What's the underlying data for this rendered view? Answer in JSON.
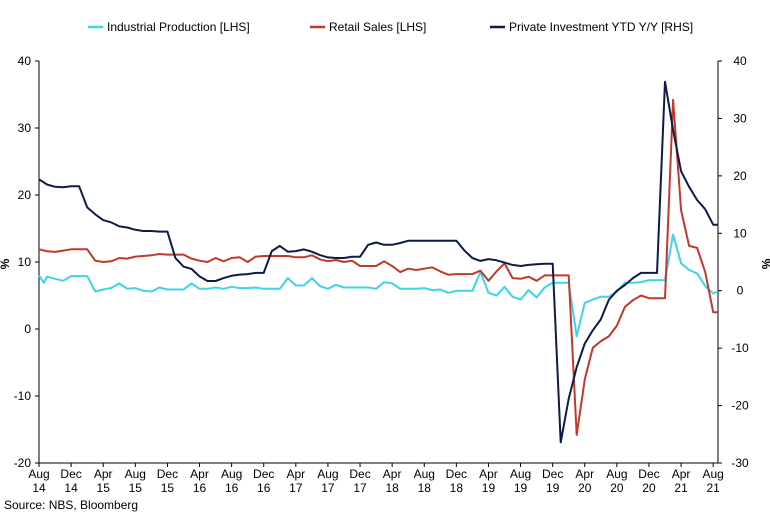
{
  "chart_data": {
    "type": "line",
    "legend_position": "top",
    "source": "Source: NBS, Bloomberg",
    "ylabel_left": "%",
    "ylabel_right": "%",
    "ylim_left": [
      -20,
      40
    ],
    "ylim_right": [
      -30,
      40
    ],
    "yticks_left": [
      40,
      30,
      20,
      10,
      0,
      -10,
      -20
    ],
    "yticks_right": [
      40,
      30,
      20,
      10,
      0,
      -10,
      -20,
      -30
    ],
    "x_start": "2014-08",
    "x_end": "2021-08",
    "xticks": [
      {
        "m": 0,
        "month": "Aug",
        "year": "14"
      },
      {
        "m": 4,
        "month": "Dec",
        "year": "14"
      },
      {
        "m": 8,
        "month": "Apr",
        "year": "15"
      },
      {
        "m": 12,
        "month": "Aug",
        "year": "15"
      },
      {
        "m": 16,
        "month": "Dec",
        "year": "15"
      },
      {
        "m": 20,
        "month": "Apr",
        "year": "16"
      },
      {
        "m": 24,
        "month": "Aug",
        "year": "16"
      },
      {
        "m": 28,
        "month": "Dec",
        "year": "16"
      },
      {
        "m": 32,
        "month": "Apr",
        "year": "17"
      },
      {
        "m": 36,
        "month": "Aug",
        "year": "17"
      },
      {
        "m": 40,
        "month": "Dec",
        "year": "17"
      },
      {
        "m": 44,
        "month": "Apr",
        "year": "18"
      },
      {
        "m": 48,
        "month": "Aug",
        "year": "18"
      },
      {
        "m": 52,
        "month": "Dec",
        "year": "18"
      },
      {
        "m": 56,
        "month": "Apr",
        "year": "19"
      },
      {
        "m": 60,
        "month": "Aug",
        "year": "19"
      },
      {
        "m": 64,
        "month": "Dec",
        "year": "19"
      },
      {
        "m": 68,
        "month": "Apr",
        "year": "20"
      },
      {
        "m": 72,
        "month": "Aug",
        "year": "20"
      },
      {
        "m": 76,
        "month": "Dec",
        "year": "20"
      },
      {
        "m": 80,
        "month": "Apr",
        "year": "21"
      },
      {
        "m": 84,
        "month": "Aug",
        "year": "21"
      }
    ],
    "series": [
      {
        "name": "Industrial Production [LHS]",
        "axis": "left",
        "color": "#3fd3e8",
        "points": [
          [
            0,
            8.0
          ],
          [
            0.6,
            6.9
          ],
          [
            1,
            7.8
          ],
          [
            2,
            7.5
          ],
          [
            3,
            7.2
          ],
          [
            4,
            7.9
          ],
          [
            5,
            7.9
          ],
          [
            6,
            7.9
          ],
          [
            7,
            5.6
          ],
          [
            8,
            5.9
          ],
          [
            9,
            6.1
          ],
          [
            10,
            6.8
          ],
          [
            11,
            6.0
          ],
          [
            12,
            6.1
          ],
          [
            13,
            5.7
          ],
          [
            14,
            5.6
          ],
          [
            15,
            6.2
          ],
          [
            16,
            5.9
          ],
          [
            17,
            5.9
          ],
          [
            18,
            5.9
          ],
          [
            19,
            6.8
          ],
          [
            20,
            6.0
          ],
          [
            21,
            6.0
          ],
          [
            22,
            6.2
          ],
          [
            23,
            6.0
          ],
          [
            24,
            6.3
          ],
          [
            25,
            6.1
          ],
          [
            26,
            6.1
          ],
          [
            27,
            6.2
          ],
          [
            28,
            6.0
          ],
          [
            29,
            6.0
          ],
          [
            30,
            6.0
          ],
          [
            31,
            7.6
          ],
          [
            32,
            6.5
          ],
          [
            33,
            6.5
          ],
          [
            34,
            7.6
          ],
          [
            35,
            6.4
          ],
          [
            36,
            6.0
          ],
          [
            37,
            6.6
          ],
          [
            38,
            6.2
          ],
          [
            39,
            6.2
          ],
          [
            40,
            6.2
          ],
          [
            41,
            6.2
          ],
          [
            42,
            6.0
          ],
          [
            43,
            7.0
          ],
          [
            44,
            6.8
          ],
          [
            45,
            6.0
          ],
          [
            46,
            6.0
          ],
          [
            47,
            6.0
          ],
          [
            48,
            6.1
          ],
          [
            49,
            5.8
          ],
          [
            50,
            5.9
          ],
          [
            51,
            5.4
          ],
          [
            52,
            5.7
          ],
          [
            53,
            5.7
          ],
          [
            54,
            5.7
          ],
          [
            55,
            8.5
          ],
          [
            56,
            5.4
          ],
          [
            57,
            5.0
          ],
          [
            58,
            6.3
          ],
          [
            59,
            4.8
          ],
          [
            60,
            4.4
          ],
          [
            61,
            5.8
          ],
          [
            62,
            4.7
          ],
          [
            63,
            6.2
          ],
          [
            64,
            6.9
          ],
          [
            65,
            6.9
          ],
          [
            66,
            6.9
          ],
          [
            67,
            -1.1
          ],
          [
            68,
            3.9
          ],
          [
            69,
            4.4
          ],
          [
            70,
            4.8
          ],
          [
            71,
            4.8
          ],
          [
            72,
            5.6
          ],
          [
            73,
            6.9
          ],
          [
            74,
            6.9
          ],
          [
            75,
            7.0
          ],
          [
            76,
            7.3
          ],
          [
            77,
            7.3
          ],
          [
            78,
            7.3
          ],
          [
            79,
            14.1
          ],
          [
            80,
            9.8
          ],
          [
            81,
            8.8
          ],
          [
            82,
            8.3
          ],
          [
            83,
            6.4
          ],
          [
            84,
            5.3
          ],
          [
            84.6,
            5.6
          ]
        ]
      },
      {
        "name": "Retail Sales [LHS]",
        "axis": "left",
        "color": "#c0392b",
        "points": [
          [
            0,
            11.9
          ],
          [
            1,
            11.6
          ],
          [
            2,
            11.5
          ],
          [
            3,
            11.7
          ],
          [
            4,
            11.9
          ],
          [
            5,
            11.9
          ],
          [
            6,
            11.9
          ],
          [
            7,
            10.2
          ],
          [
            8,
            10.0
          ],
          [
            9,
            10.1
          ],
          [
            10,
            10.6
          ],
          [
            11,
            10.5
          ],
          [
            12,
            10.8
          ],
          [
            13,
            10.9
          ],
          [
            14,
            11.0
          ],
          [
            15,
            11.2
          ],
          [
            16,
            11.1
          ],
          [
            17,
            11.1
          ],
          [
            18,
            11.1
          ],
          [
            19,
            10.5
          ],
          [
            20,
            10.2
          ],
          [
            21,
            10.0
          ],
          [
            22,
            10.6
          ],
          [
            23,
            10.1
          ],
          [
            24,
            10.6
          ],
          [
            25,
            10.7
          ],
          [
            26,
            10.0
          ],
          [
            27,
            10.8
          ],
          [
            28,
            10.9
          ],
          [
            29,
            10.9
          ],
          [
            30,
            10.9
          ],
          [
            31,
            10.9
          ],
          [
            32,
            10.7
          ],
          [
            33,
            10.7
          ],
          [
            34,
            11.0
          ],
          [
            35,
            10.4
          ],
          [
            36,
            10.1
          ],
          [
            37,
            10.3
          ],
          [
            38,
            10.0
          ],
          [
            39,
            10.2
          ],
          [
            40,
            9.4
          ],
          [
            41,
            9.4
          ],
          [
            42,
            9.4
          ],
          [
            43,
            10.1
          ],
          [
            44,
            9.4
          ],
          [
            45,
            8.5
          ],
          [
            46,
            9.0
          ],
          [
            47,
            8.8
          ],
          [
            48,
            9.0
          ],
          [
            49,
            9.2
          ],
          [
            50,
            8.6
          ],
          [
            51,
            8.1
          ],
          [
            52,
            8.2
          ],
          [
            53,
            8.2
          ],
          [
            54,
            8.2
          ],
          [
            55,
            8.7
          ],
          [
            56,
            7.2
          ],
          [
            57,
            8.6
          ],
          [
            58,
            9.8
          ],
          [
            59,
            7.6
          ],
          [
            60,
            7.5
          ],
          [
            61,
            7.8
          ],
          [
            62,
            7.2
          ],
          [
            63,
            8.0
          ],
          [
            64,
            8.0
          ],
          [
            65,
            8.0
          ],
          [
            66,
            8.0
          ],
          [
            67,
            -15.8
          ],
          [
            68,
            -7.5
          ],
          [
            69,
            -2.8
          ],
          [
            70,
            -1.8
          ],
          [
            71,
            -1.1
          ],
          [
            72,
            0.5
          ],
          [
            73,
            3.3
          ],
          [
            74,
            4.3
          ],
          [
            75,
            5.0
          ],
          [
            76,
            4.6
          ],
          [
            77,
            4.6
          ],
          [
            78,
            4.6
          ],
          [
            79,
            34.2
          ],
          [
            80,
            17.7
          ],
          [
            81,
            12.4
          ],
          [
            82,
            12.1
          ],
          [
            83,
            8.5
          ],
          [
            84,
            2.5
          ],
          [
            84.6,
            2.5
          ]
        ]
      },
      {
        "name": "Private Investment YTD Y/Y [RHS]",
        "axis": "right",
        "color": "#0d1b46",
        "points": [
          [
            0,
            19.4
          ],
          [
            1,
            18.5
          ],
          [
            2,
            18.1
          ],
          [
            3,
            18.0
          ],
          [
            4,
            18.2
          ],
          [
            5,
            18.2
          ],
          [
            6,
            14.5
          ],
          [
            7,
            13.3
          ],
          [
            8,
            12.3
          ],
          [
            9,
            11.9
          ],
          [
            10,
            11.2
          ],
          [
            11,
            11.0
          ],
          [
            12,
            10.6
          ],
          [
            13,
            10.4
          ],
          [
            14,
            10.4
          ],
          [
            15,
            10.3
          ],
          [
            16,
            10.3
          ],
          [
            17,
            5.7
          ],
          [
            18,
            4.2
          ],
          [
            19,
            3.8
          ],
          [
            20,
            2.5
          ],
          [
            21,
            1.7
          ],
          [
            22,
            1.7
          ],
          [
            23,
            2.2
          ],
          [
            24,
            2.6
          ],
          [
            25,
            2.8
          ],
          [
            26,
            2.9
          ],
          [
            27,
            3.1
          ],
          [
            28,
            3.1
          ],
          [
            29,
            6.9
          ],
          [
            30,
            7.8
          ],
          [
            31,
            6.8
          ],
          [
            32,
            6.9
          ],
          [
            33,
            7.2
          ],
          [
            34,
            6.8
          ],
          [
            35,
            6.2
          ],
          [
            36,
            5.8
          ],
          [
            37,
            5.7
          ],
          [
            38,
            5.7
          ],
          [
            39,
            5.9
          ],
          [
            40,
            5.9
          ],
          [
            41,
            8.0
          ],
          [
            42,
            8.4
          ],
          [
            43,
            8.0
          ],
          [
            44,
            8.0
          ],
          [
            45,
            8.3
          ],
          [
            46,
            8.7
          ],
          [
            47,
            8.7
          ],
          [
            48,
            8.7
          ],
          [
            49,
            8.7
          ],
          [
            50,
            8.7
          ],
          [
            51,
            8.7
          ],
          [
            52,
            8.7
          ],
          [
            53,
            7.0
          ],
          [
            54,
            5.7
          ],
          [
            55,
            5.2
          ],
          [
            56,
            5.5
          ],
          [
            57,
            5.3
          ],
          [
            58,
            4.9
          ],
          [
            59,
            4.5
          ],
          [
            60,
            4.3
          ],
          [
            61,
            4.5
          ],
          [
            62,
            4.6
          ],
          [
            63,
            4.7
          ],
          [
            64,
            4.7
          ],
          [
            65,
            -26.4
          ],
          [
            66,
            -18.8
          ],
          [
            67,
            -13.3
          ],
          [
            68,
            -9.2
          ],
          [
            69,
            -6.9
          ],
          [
            70,
            -5.0
          ],
          [
            71,
            -1.6
          ],
          [
            72,
            0.0
          ],
          [
            73,
            1.0
          ],
          [
            74,
            2.2
          ],
          [
            75,
            3.1
          ],
          [
            76,
            3.1
          ],
          [
            77,
            3.1
          ],
          [
            78,
            36.4
          ],
          [
            79,
            28.0
          ],
          [
            80,
            20.8
          ],
          [
            81,
            18.1
          ],
          [
            82,
            15.8
          ],
          [
            83,
            14.2
          ],
          [
            84,
            11.5
          ],
          [
            84.6,
            11.5
          ]
        ]
      }
    ]
  }
}
